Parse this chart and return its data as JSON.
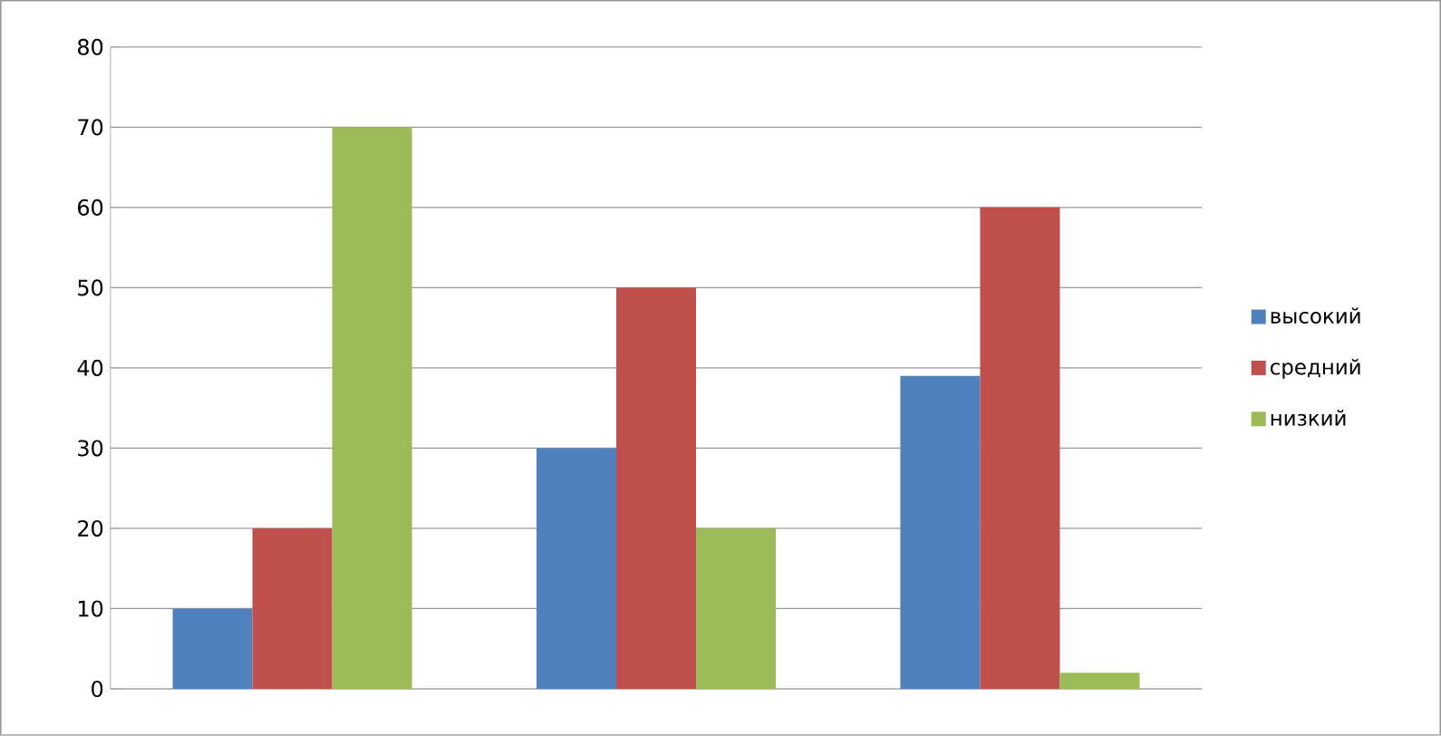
{
  "chart_data": {
    "type": "bar",
    "categories": [
      null,
      null,
      null
    ],
    "series": [
      {
        "name": "высокий",
        "color": "#4f81bd",
        "values": [
          10,
          30,
          39
        ]
      },
      {
        "name": "средний",
        "color": "#c0504d",
        "values": [
          20,
          50,
          60
        ]
      },
      {
        "name": "низкий",
        "color": "#9bbb59",
        "values": [
          70,
          20,
          2
        ]
      }
    ],
    "ylim": [
      0,
      80
    ],
    "yticks": [
      0,
      10,
      20,
      30,
      40,
      50,
      60,
      70,
      80
    ],
    "grid": "y",
    "legend": "right"
  }
}
